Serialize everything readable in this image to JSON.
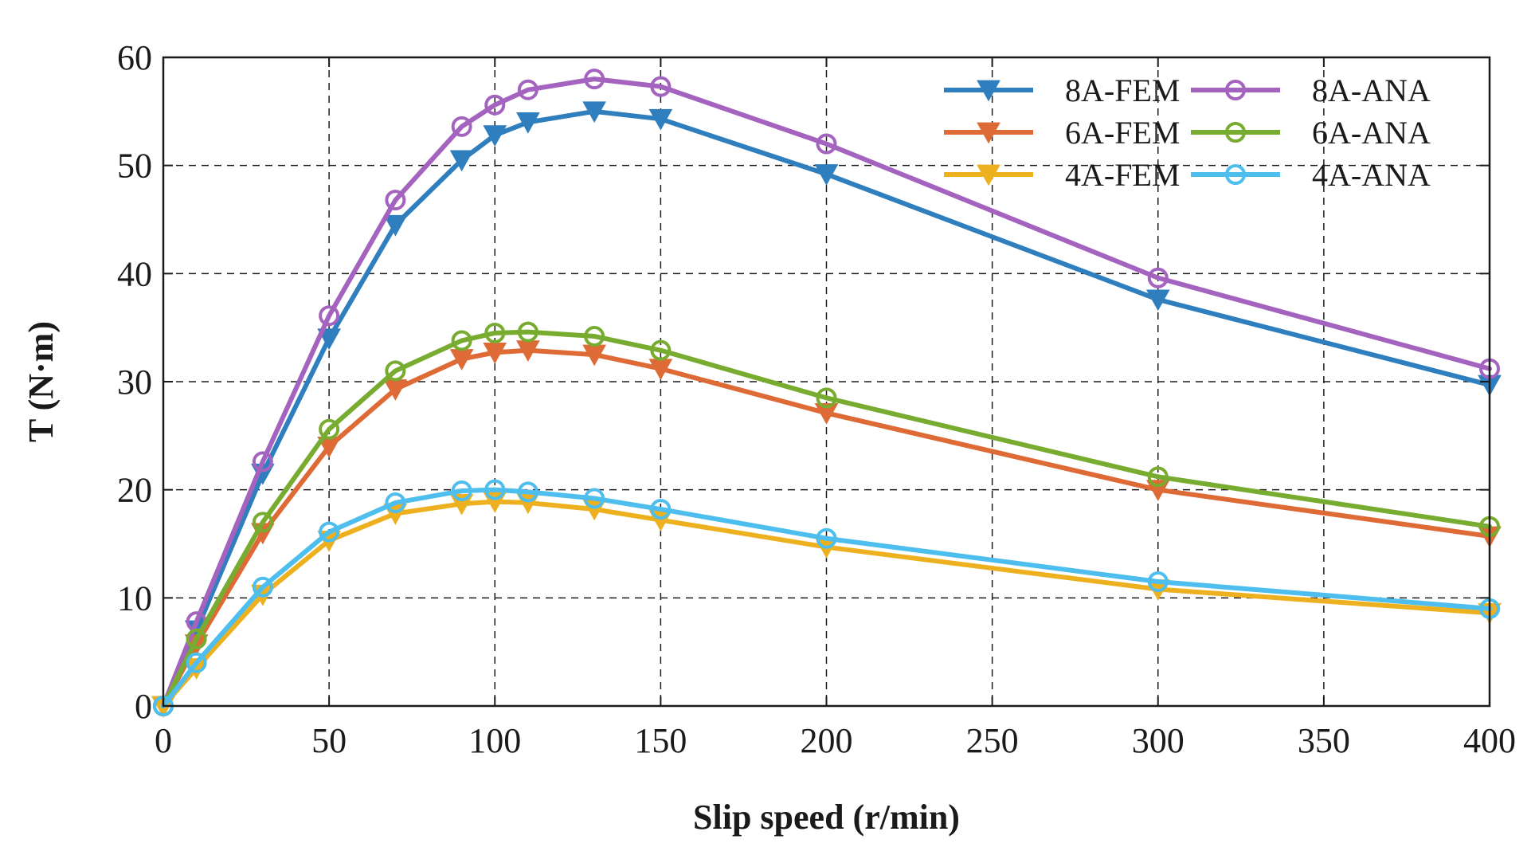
{
  "chart_data": {
    "type": "line",
    "title": "",
    "xlabel": "Slip speed (r/min)",
    "ylabel": "T (N·m)",
    "xlim": [
      0,
      400
    ],
    "ylim": [
      0,
      60
    ],
    "xticks": [
      0,
      50,
      100,
      150,
      200,
      250,
      300,
      350,
      400
    ],
    "yticks": [
      0,
      10,
      20,
      30,
      40,
      50,
      60
    ],
    "grid": true,
    "legend_position": "top-right",
    "x": [
      0,
      10,
      30,
      50,
      70,
      90,
      100,
      110,
      130,
      150,
      200,
      300,
      400
    ],
    "series": [
      {
        "name": "8A-FEM",
        "marker": "triangle-down",
        "color": "#2f7fbf",
        "values": [
          0,
          7,
          21.5,
          34,
          44.5,
          50.5,
          52.8,
          54,
          55,
          54.3,
          49.2,
          37.6,
          29.7
        ]
      },
      {
        "name": "8A-ANA",
        "marker": "circle",
        "color": "#a463bf",
        "values": [
          0,
          7.8,
          22.6,
          36.1,
          46.8,
          53.6,
          55.6,
          57,
          58,
          57.3,
          52,
          39.6,
          31.2
        ]
      },
      {
        "name": "6A-FEM",
        "marker": "triangle-down",
        "color": "#de6a35",
        "values": [
          0,
          5.7,
          16,
          24,
          29.3,
          32.1,
          32.7,
          32.9,
          32.5,
          31.2,
          27.1,
          20,
          15.7
        ]
      },
      {
        "name": "6A-ANA",
        "marker": "circle",
        "color": "#77ac30",
        "values": [
          0,
          6.2,
          17,
          25.6,
          31,
          33.8,
          34.5,
          34.6,
          34.2,
          32.9,
          28.5,
          21.2,
          16.6
        ]
      },
      {
        "name": "4A-FEM",
        "marker": "triangle-down",
        "color": "#edb120",
        "values": [
          0,
          3.5,
          10.3,
          15.3,
          17.8,
          18.7,
          18.9,
          18.8,
          18.2,
          17.2,
          14.7,
          10.8,
          8.6
        ]
      },
      {
        "name": "4A-ANA",
        "marker": "circle",
        "color": "#4dbeee",
        "values": [
          0,
          4,
          11,
          16.1,
          18.8,
          19.9,
          20,
          19.8,
          19.2,
          18.2,
          15.5,
          11.5,
          9
        ]
      }
    ],
    "legend_order": [
      "8A-FEM",
      "8A-ANA",
      "6A-FEM",
      "6A-ANA",
      "4A-FEM",
      "4A-ANA"
    ]
  }
}
